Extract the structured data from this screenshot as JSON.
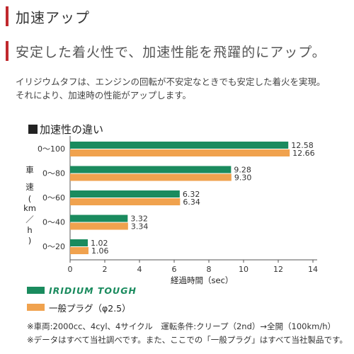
{
  "header": {
    "title": "加速アップ",
    "subtitle": "安定した着火性で、加速性能を飛躍的にアップ。"
  },
  "description": {
    "line1": "イリジウムタフは、エンジンの回転が不安定なときでも安定した着火を実現。",
    "line2": "それにより、加速時の性能がアップします。"
  },
  "colors": {
    "accent": "#c0282d",
    "iridium": "#1a8b5e",
    "standard": "#f0a24e"
  },
  "chart_data": {
    "type": "bar",
    "orientation": "horizontal",
    "title": "加速性の違い",
    "ylabel_chars": [
      "車",
      "速",
      "(",
      "km",
      "／",
      "h",
      ")"
    ],
    "xlabel": "経過時間（sec）",
    "xlim": [
      0,
      14
    ],
    "xticks": [
      "0",
      "2",
      "4",
      "6",
      "8",
      "10",
      "12",
      "14"
    ],
    "categories": [
      "0〜100",
      "0〜80",
      "0〜60",
      "0〜40",
      "0〜20"
    ],
    "series": [
      {
        "name": "IRIDIUM TOUGH",
        "color": "#1a8b5e",
        "values": [
          12.58,
          9.28,
          6.32,
          3.32,
          1.02
        ],
        "labels": [
          "12.58",
          "9.28",
          "6.32",
          "3.32",
          "1.02"
        ]
      },
      {
        "name": "一般プラグ（φ2.5）",
        "color": "#f0a24e",
        "values": [
          12.66,
          9.3,
          6.34,
          3.34,
          1.06
        ],
        "labels": [
          "12.66",
          "9.30",
          "6.34",
          "3.34",
          "1.06"
        ]
      }
    ],
    "grid": false,
    "legend": "bottom-left"
  },
  "legend": {
    "iridium": "IRIDIUM TOUGH",
    "standard": "一般プラグ（φ2.5）"
  },
  "notes": {
    "line1": "※車両:2000cc、4cyl、4サイクル　運転条件:クリープ（2nd）→全開（100km/h）",
    "line2": "※データはすべて当社調べです。また、ここでの「一般プラグ」はすべて当社製品です。"
  }
}
